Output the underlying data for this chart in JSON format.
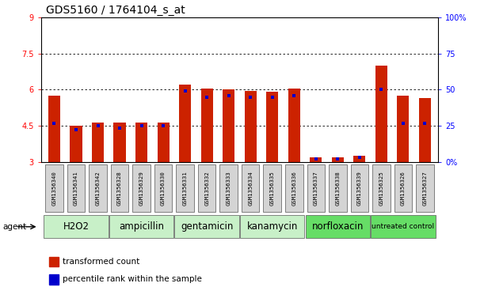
{
  "title": "GDS5160 / 1764104_s_at",
  "samples": [
    "GSM1356340",
    "GSM1356341",
    "GSM1356342",
    "GSM1356328",
    "GSM1356329",
    "GSM1356330",
    "GSM1356331",
    "GSM1356332",
    "GSM1356333",
    "GSM1356334",
    "GSM1356335",
    "GSM1356336",
    "GSM1356337",
    "GSM1356338",
    "GSM1356339",
    "GSM1356325",
    "GSM1356326",
    "GSM1356327"
  ],
  "red_values": [
    5.75,
    4.5,
    4.65,
    4.65,
    4.65,
    4.65,
    6.2,
    6.05,
    6.0,
    5.95,
    5.9,
    6.05,
    3.2,
    3.2,
    3.25,
    7.0,
    5.75,
    5.65
  ],
  "blue_values": [
    4.6,
    4.35,
    4.5,
    4.4,
    4.5,
    4.5,
    5.95,
    5.7,
    5.75,
    5.7,
    5.7,
    5.75,
    3.15,
    3.15,
    3.2,
    6.0,
    4.6,
    4.6
  ],
  "groups": [
    {
      "label": "H2O2",
      "start": 0,
      "end": 3,
      "color": "#c8f0c8"
    },
    {
      "label": "ampicillin",
      "start": 3,
      "end": 6,
      "color": "#c8f0c8"
    },
    {
      "label": "gentamicin",
      "start": 6,
      "end": 9,
      "color": "#c8f0c8"
    },
    {
      "label": "kanamycin",
      "start": 9,
      "end": 12,
      "color": "#c8f0c8"
    },
    {
      "label": "norfloxacin",
      "start": 12,
      "end": 15,
      "color": "#66dd66"
    },
    {
      "label": "untreated control",
      "start": 15,
      "end": 18,
      "color": "#66dd66"
    }
  ],
  "ylim_left": [
    3,
    9
  ],
  "ylim_right": [
    0,
    100
  ],
  "yticks_left": [
    3,
    4.5,
    6,
    7.5,
    9
  ],
  "yticks_right": [
    0,
    25,
    50,
    75,
    100
  ],
  "ytick_labels_left": [
    "3",
    "4.5",
    "6",
    "7.5",
    "9"
  ],
  "ytick_labels_right": [
    "0",
    "25",
    "50",
    "75",
    "100%"
  ],
  "grid_lines": [
    4.5,
    6.0,
    7.5
  ],
  "bar_color": "#cc2200",
  "dot_color": "#0000cc",
  "bar_width": 0.55,
  "legend_items": [
    {
      "label": "transformed count",
      "color": "#cc2200"
    },
    {
      "label": "percentile rank within the sample",
      "color": "#0000cc"
    }
  ],
  "agent_label": "agent",
  "title_fontsize": 10,
  "tick_fontsize": 7,
  "group_fontsize": 8.5
}
